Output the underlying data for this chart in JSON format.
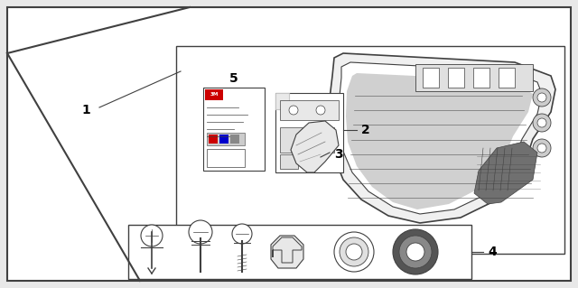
{
  "bg_color": "#ffffff",
  "outer_bg": "#e8e8e8",
  "line_color": "#404040",
  "thin_line": "#666666",
  "grille_fill": "#f5f5f5",
  "grille_dark": "#888888",
  "hardware_bg": "#f0f0f0"
}
